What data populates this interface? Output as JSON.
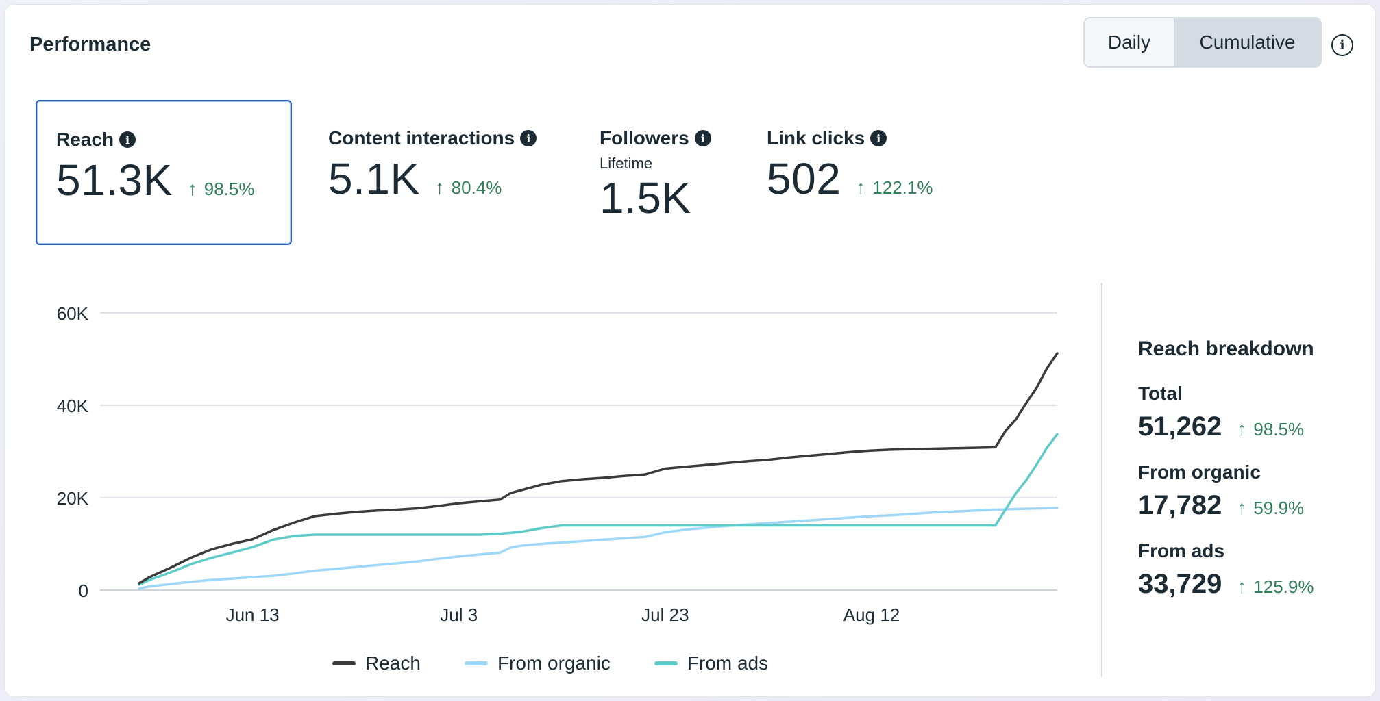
{
  "header": {
    "title": "Performance",
    "toggle_daily": "Daily",
    "toggle_cumulative": "Cumulative",
    "info_icon": "info-circle-icon"
  },
  "metrics": [
    {
      "label": "Reach",
      "value": "51.3K",
      "change": "98.5%"
    },
    {
      "label": "Content interactions",
      "value": "5.1K",
      "change": "80.4%"
    },
    {
      "label": "Followers",
      "sub": "Lifetime",
      "value": "1.5K"
    },
    {
      "label": "Link clicks",
      "value": "502",
      "change": "122.1%"
    }
  ],
  "breakdown": {
    "title": "Reach breakdown",
    "total": {
      "label": "Total",
      "value": "51,262",
      "change": "98.5%"
    },
    "organic": {
      "label": "From organic",
      "value": "17,782",
      "change": "59.9%"
    },
    "ads": {
      "label": "From ads",
      "value": "33,729",
      "change": "125.9%"
    }
  },
  "legend": {
    "reach": "Reach",
    "organic": "From organic",
    "ads": "From ads"
  },
  "colors": {
    "reach": "#3b3b3b",
    "organic": "#9fd8f7",
    "ads": "#5fcbc8",
    "positive": "#31805a",
    "selected": "#2d63b8"
  },
  "chart_data": {
    "type": "line",
    "ylim": [
      0,
      60000
    ],
    "yticks": [
      0,
      20000,
      40000,
      60000
    ],
    "ytick_labels": [
      "0",
      "20K",
      "40K",
      "60K"
    ],
    "xticks": [
      13,
      33,
      53,
      73
    ],
    "xtick_labels": [
      "Jun 13",
      "Jul 3",
      "Jul 23",
      "Aug 12"
    ],
    "xlim": [
      2,
      91
    ],
    "series": [
      {
        "name": "Reach",
        "x": [
          2,
          3,
          5,
          7,
          9,
          11,
          13,
          15,
          17,
          19,
          21,
          23,
          25,
          27,
          29,
          31,
          33,
          35,
          37,
          38,
          39,
          41,
          43,
          45,
          47,
          49,
          51,
          53,
          55,
          57,
          59,
          61,
          63,
          65,
          67,
          69,
          71,
          73,
          75,
          77,
          79,
          81,
          83,
          85,
          86,
          87,
          88,
          89,
          90,
          91
        ],
        "values": [
          1500,
          2800,
          4800,
          7000,
          8800,
          10000,
          11000,
          13000,
          14600,
          16000,
          16500,
          16900,
          17200,
          17400,
          17700,
          18200,
          18800,
          19200,
          19600,
          21000,
          21600,
          22800,
          23600,
          24000,
          24300,
          24700,
          25000,
          26300,
          26700,
          27100,
          27500,
          27900,
          28200,
          28700,
          29100,
          29500,
          29900,
          30200,
          30400,
          30500,
          30600,
          30700,
          30800,
          30900,
          34500,
          37000,
          40500,
          43800,
          48000,
          51262
        ]
      },
      {
        "name": "From organic",
        "x": [
          2,
          3,
          5,
          7,
          9,
          11,
          13,
          15,
          17,
          19,
          21,
          23,
          25,
          27,
          29,
          31,
          33,
          35,
          37,
          38,
          39,
          41,
          43,
          45,
          47,
          49,
          51,
          53,
          55,
          57,
          59,
          61,
          63,
          65,
          67,
          69,
          71,
          73,
          75,
          77,
          79,
          81,
          83,
          85,
          87,
          89,
          91
        ],
        "values": [
          300,
          800,
          1300,
          1800,
          2200,
          2500,
          2800,
          3100,
          3600,
          4200,
          4600,
          5000,
          5400,
          5800,
          6200,
          6800,
          7300,
          7700,
          8100,
          9200,
          9600,
          10000,
          10300,
          10600,
          10900,
          11200,
          11500,
          12500,
          13100,
          13500,
          13900,
          14200,
          14500,
          14800,
          15100,
          15400,
          15700,
          16000,
          16200,
          16500,
          16800,
          17000,
          17200,
          17400,
          17550,
          17680,
          17782
        ]
      },
      {
        "name": "From ads",
        "x": [
          2,
          3,
          5,
          7,
          9,
          11,
          13,
          15,
          17,
          19,
          21,
          23,
          25,
          27,
          29,
          31,
          33,
          35,
          37,
          39,
          41,
          43,
          45,
          47,
          49,
          51,
          53,
          55,
          57,
          59,
          61,
          63,
          65,
          67,
          69,
          71,
          73,
          75,
          77,
          79,
          81,
          83,
          85,
          86,
          87,
          88,
          89,
          90,
          91
        ],
        "values": [
          1200,
          2200,
          3800,
          5600,
          7000,
          8100,
          9300,
          10900,
          11700,
          12000,
          12000,
          12000,
          12000,
          12000,
          12000,
          12000,
          12000,
          12000,
          12200,
          12600,
          13400,
          14000,
          14000,
          14000,
          14000,
          14000,
          14000,
          14000,
          14000,
          14000,
          14000,
          14000,
          14000,
          14000,
          14000,
          14000,
          14000,
          14000,
          14000,
          14000,
          14000,
          14000,
          14000,
          17500,
          21000,
          23800,
          27200,
          30800,
          33729
        ]
      }
    ]
  }
}
